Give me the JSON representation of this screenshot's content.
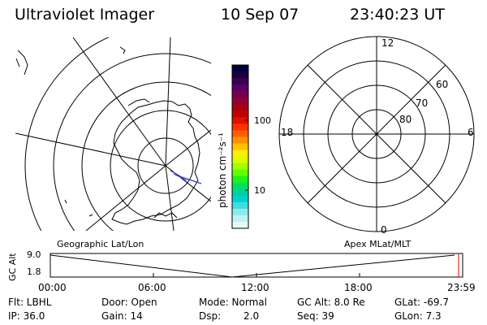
{
  "header": {
    "instrument": "Ultraviolet Imager",
    "date": "10 Sep 07",
    "time": "23:40:23 UT"
  },
  "left_map": {
    "caption": "Geographic Lat/Lon"
  },
  "right_map": {
    "caption": "Apex MLat/MLT",
    "mlt_labels": [
      "12",
      "18",
      "6",
      "0"
    ],
    "lat_labels": [
      "60",
      "70",
      "80"
    ]
  },
  "colorbar": {
    "label": "photon cm⁻²s⁻¹",
    "ticks": [
      "100",
      "10"
    ],
    "colors": [
      "#000040",
      "#1a0040",
      "#3a0050",
      "#5a0060",
      "#780050",
      "#900030",
      "#a80010",
      "#c00000",
      "#e01000",
      "#ff3000",
      "#ff6000",
      "#ff9000",
      "#ffc000",
      "#ffee00",
      "#d8ff00",
      "#a0ff00",
      "#60ff00",
      "#20f020",
      "#00e060",
      "#00d0a0",
      "#00d0d0",
      "#40dde0",
      "#90e8ec",
      "#c0f0f4",
      "#e6f8fa"
    ]
  },
  "altitude_panel": {
    "ylabel": "GC Alt",
    "yticks": [
      "9.0",
      "1.8"
    ],
    "xticks": [
      "00:00",
      "06:00",
      "12:00",
      "18:00",
      "23:59"
    ]
  },
  "status": {
    "row1": {
      "filter": "Flt: LBHL",
      "door": "Door: Open",
      "mode": "Mode: Normal",
      "gcalt": "GC Alt: 8.0 Re",
      "glat": "GLat: -69.7"
    },
    "row2": {
      "ip": "IP: 36.0",
      "gain": "Gain: 14",
      "dsp_label": "Dsp:",
      "dsp_value": "2.0",
      "seq": "Seq: 39",
      "glon": "GLon: 7.3"
    }
  }
}
